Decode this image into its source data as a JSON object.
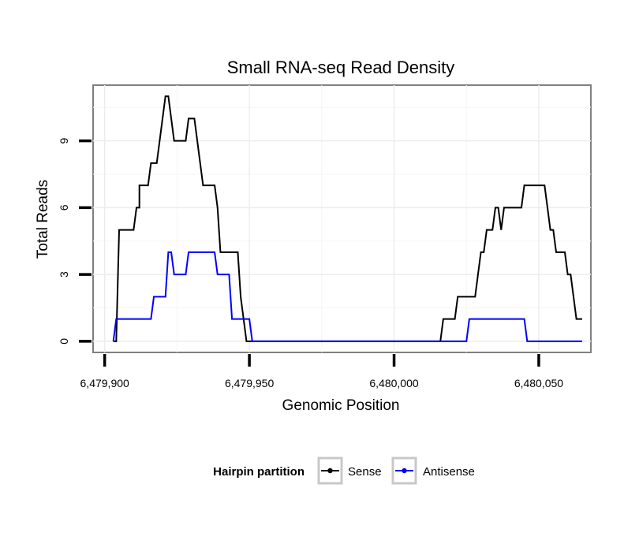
{
  "chart_data": {
    "type": "line",
    "title": "Small RNA-seq Read Density",
    "xlabel": "Genomic Position",
    "ylabel": "Total Reads",
    "xlim": [
      6479896,
      6480068
    ],
    "ylim": [
      -0.5,
      11.5
    ],
    "x_ticks": [
      {
        "value": 6479900,
        "label": "6,479,900"
      },
      {
        "value": 6479950,
        "label": "6,479,950"
      },
      {
        "value": 6480000,
        "label": "6,480,000"
      },
      {
        "value": 6480050,
        "label": "6,480,050"
      }
    ],
    "y_ticks": [
      {
        "value": 0,
        "label": "0"
      },
      {
        "value": 3,
        "label": "3"
      },
      {
        "value": 6,
        "label": "6"
      },
      {
        "value": 9,
        "label": "9"
      }
    ],
    "grid": true,
    "legend": {
      "title": "Hairpin partition",
      "position": "bottom"
    },
    "series": [
      {
        "name": "Sense",
        "color": "#000000",
        "points": [
          [
            6479903,
            0
          ],
          [
            6479904,
            0
          ],
          [
            6479905,
            5
          ],
          [
            6479910,
            5
          ],
          [
            6479911,
            6
          ],
          [
            6479912,
            6
          ],
          [
            6479912,
            7
          ],
          [
            6479915,
            7
          ],
          [
            6479916,
            8
          ],
          [
            6479918,
            8
          ],
          [
            6479919,
            9
          ],
          [
            6479920,
            10
          ],
          [
            6479921,
            11
          ],
          [
            6479922,
            11
          ],
          [
            6479923,
            10
          ],
          [
            6479924,
            9
          ],
          [
            6479928,
            9
          ],
          [
            6479929,
            10
          ],
          [
            6479931,
            10
          ],
          [
            6479932,
            9
          ],
          [
            6479933,
            8
          ],
          [
            6479934,
            7
          ],
          [
            6479938,
            7
          ],
          [
            6479939,
            6
          ],
          [
            6479940,
            4
          ],
          [
            6479946,
            4
          ],
          [
            6479947,
            2
          ],
          [
            6479948,
            1
          ],
          [
            6479949,
            0
          ],
          [
            6480016,
            0
          ],
          [
            6480017,
            1
          ],
          [
            6480021,
            1
          ],
          [
            6480022,
            2
          ],
          [
            6480028,
            2
          ],
          [
            6480029,
            3
          ],
          [
            6480030,
            4
          ],
          [
            6480031,
            4
          ],
          [
            6480032,
            5
          ],
          [
            6480034,
            5
          ],
          [
            6480035,
            6
          ],
          [
            6480036,
            6
          ],
          [
            6480037,
            5
          ],
          [
            6480038,
            6
          ],
          [
            6480044,
            6
          ],
          [
            6480045,
            7
          ],
          [
            6480052,
            7
          ],
          [
            6480053,
            6
          ],
          [
            6480054,
            5
          ],
          [
            6480055,
            5
          ],
          [
            6480056,
            4
          ],
          [
            6480059,
            4
          ],
          [
            6480060,
            3
          ],
          [
            6480061,
            3
          ],
          [
            6480062,
            2
          ],
          [
            6480063,
            1
          ],
          [
            6480065,
            1
          ]
        ]
      },
      {
        "name": "Antisense",
        "color": "#0000ff",
        "points": [
          [
            6479903,
            0
          ],
          [
            6479904,
            1
          ],
          [
            6479916,
            1
          ],
          [
            6479917,
            2
          ],
          [
            6479921,
            2
          ],
          [
            6479922,
            4
          ],
          [
            6479923,
            4
          ],
          [
            6479924,
            3
          ],
          [
            6479928,
            3
          ],
          [
            6479929,
            4
          ],
          [
            6479938,
            4
          ],
          [
            6479939,
            3
          ],
          [
            6479943,
            3
          ],
          [
            6479944,
            1
          ],
          [
            6479950,
            1
          ],
          [
            6479951,
            0
          ],
          [
            6480025,
            0
          ],
          [
            6480026,
            1
          ],
          [
            6480045,
            1
          ],
          [
            6480046,
            0
          ],
          [
            6480065,
            0
          ]
        ]
      }
    ]
  }
}
